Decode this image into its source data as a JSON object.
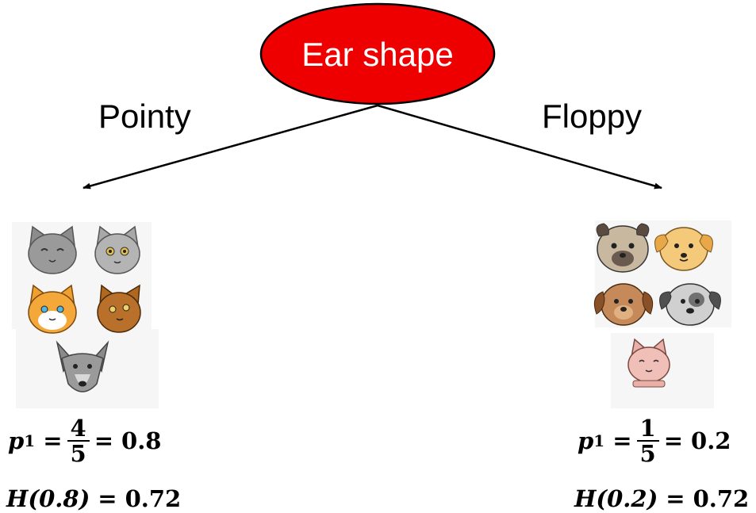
{
  "root": {
    "label": "Ear shape",
    "fill": "#ee0000"
  },
  "branches": [
    {
      "label": "Pointy"
    },
    {
      "label": "Floppy"
    }
  ],
  "groups": [
    {
      "animals": [
        "cat-icon",
        "cat-icon",
        "cat-icon",
        "cat-icon",
        "dog-icon"
      ],
      "p_symbol": "p",
      "p_subscript": "1",
      "frac_num": "4",
      "frac_den": "5",
      "p_value": "0.8",
      "h_expr": "H(0.8)",
      "h_value": "0.72"
    },
    {
      "animals": [
        "dog-icon",
        "dog-icon",
        "dog-icon",
        "dog-icon",
        "cat-icon"
      ],
      "p_symbol": "p",
      "p_subscript": "1",
      "frac_num": "1",
      "frac_den": "5",
      "p_value": "0.2",
      "h_expr": "H(0.2)",
      "h_value": "0.72"
    }
  ]
}
